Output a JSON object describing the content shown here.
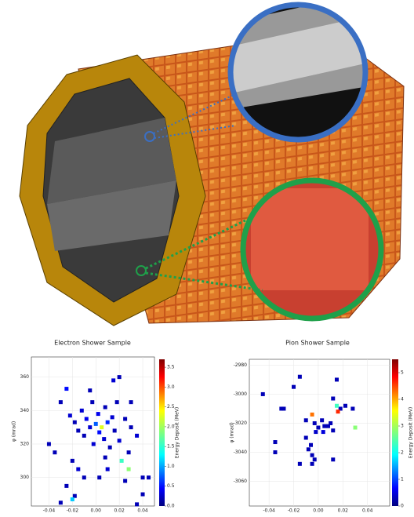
{
  "chart_data": [
    {
      "type": "heatmap",
      "title": "Electron Shower Sample",
      "x_label": "η",
      "y_label": "φ (mrad)",
      "colorbar_label": "Energy Deposit (MeV)",
      "colormap": "jet",
      "grid": true,
      "xlim": [
        -0.055,
        0.05
      ],
      "ylim": [
        283,
        372
      ],
      "xticks": [
        -0.04,
        -0.02,
        {
          "value": 0,
          "label": "0.00"
        },
        0.02,
        0.04
      ],
      "yticks": [
        300,
        320,
        340,
        360
      ],
      "clim": [
        0,
        3.7
      ],
      "cticks": [
        {
          "value": 0,
          "label": "0.0"
        },
        0.5,
        {
          "value": 1,
          "label": "1.0"
        },
        1.5,
        {
          "value": 2,
          "label": "2.0"
        },
        2.5,
        {
          "value": 3,
          "label": "3.0"
        },
        3.5
      ],
      "x": [
        -0.03,
        -0.022,
        -0.018,
        -0.015,
        -0.012,
        -0.01,
        -0.008,
        -0.005,
        -0.003,
        -0.002,
        0,
        0.002,
        0.003,
        0.005,
        0.007,
        0.008,
        0.01,
        0.012,
        0.014,
        0.016,
        0.018,
        0.02,
        0.022,
        0.025,
        0.028,
        0.03,
        0.035,
        0.04,
        0.045,
        0.02,
        0.015,
        -0.005,
        -0.02,
        -0.015,
        -0.025,
        -0.018,
        -0.02,
        -0.03,
        0.035,
        0.04,
        0.003,
        0.01,
        0.025,
        -0.04,
        -0.035,
        0.008,
        -0.01,
        0.03,
        0.028,
        -0.025
      ],
      "y": [
        345,
        337,
        333,
        328,
        340,
        325,
        335,
        330,
        345,
        320,
        332,
        338,
        327,
        330,
        323,
        342,
        333,
        318,
        336,
        328,
        345,
        322,
        310,
        335,
        315,
        330,
        325,
        300,
        300,
        360,
        358,
        352,
        310,
        305,
        295,
        289,
        287,
        285,
        284,
        290,
        300,
        305,
        298,
        320,
        315,
        312,
        300,
        345,
        305,
        353
      ],
      "values": [
        0.2,
        0.3,
        0.2,
        0.2,
        0.3,
        0.2,
        0.4,
        0.3,
        0.2,
        0.3,
        0.8,
        0.4,
        0.5,
        2.2,
        0.3,
        0.2,
        0.6,
        0.2,
        0.3,
        0.2,
        0.2,
        0.3,
        1.6,
        0.2,
        0.2,
        0.2,
        0.3,
        0.2,
        0.2,
        0.2,
        0.3,
        0.2,
        0.2,
        0.3,
        0.2,
        0.2,
        1.2,
        0.2,
        0.2,
        0.2,
        0.2,
        0.3,
        0.2,
        0.2,
        0.2,
        0.2,
        0.2,
        0.2,
        1.9,
        0.5
      ]
    },
    {
      "type": "heatmap",
      "title": "Pion Shower Sample",
      "x_label": "η",
      "y_label": "φ (mrad)",
      "colorbar_label": "Energy Deposit (MeV)",
      "colormap": "jet",
      "grid": true,
      "xlim": [
        -0.056,
        0.058
      ],
      "ylim": [
        -3077,
        -2976
      ],
      "xticks": [
        -0.04,
        -0.02,
        {
          "value": 0,
          "label": "0.00"
        },
        0.02,
        0.04
      ],
      "yticks": [
        -3060,
        -3040,
        -3020,
        -3000,
        -2980
      ],
      "clim": [
        0,
        5.5
      ],
      "cticks": [
        0,
        1,
        2,
        3,
        4,
        5
      ],
      "x": [
        -0.045,
        -0.015,
        -0.02,
        -0.03,
        -0.028,
        0.015,
        0.012,
        0.018,
        0.022,
        0.028,
        0.015,
        -0.005,
        0.016,
        0.03,
        -0.01,
        -0.003,
        0,
        0.003,
        0.005,
        -0.002,
        0.008,
        0.01,
        0.012,
        -0.035,
        -0.035,
        -0.01,
        -0.006,
        -0.008,
        -0.005,
        -0.003,
        0.012,
        -0.015,
        -0.005,
        0.004
      ],
      "y": [
        -3000,
        -2988,
        -2995,
        -3010,
        -3010,
        -2990,
        -3003,
        -3010,
        -3008,
        -3010,
        -3008,
        -3014,
        -3012,
        -3023,
        -3018,
        -3020,
        -3023,
        -3018,
        -3022,
        -3026,
        -3022,
        -3020,
        -3025,
        -3033,
        -3040,
        -3030,
        -3035,
        -3038,
        -3042,
        -3045,
        -3045,
        -3048,
        -3048,
        -3026
      ],
      "values": [
        0.3,
        0.3,
        0.3,
        0.3,
        0.3,
        0.3,
        0.3,
        0.3,
        0.3,
        0.3,
        2.4,
        4.2,
        4.6,
        2.8,
        0.3,
        0.3,
        0.3,
        0.3,
        0.3,
        0.4,
        0.3,
        0.3,
        0.3,
        0.3,
        0.3,
        0.3,
        0.3,
        0.3,
        0.3,
        0.3,
        0.3,
        0.3,
        0.3,
        0.5
      ]
    }
  ]
}
